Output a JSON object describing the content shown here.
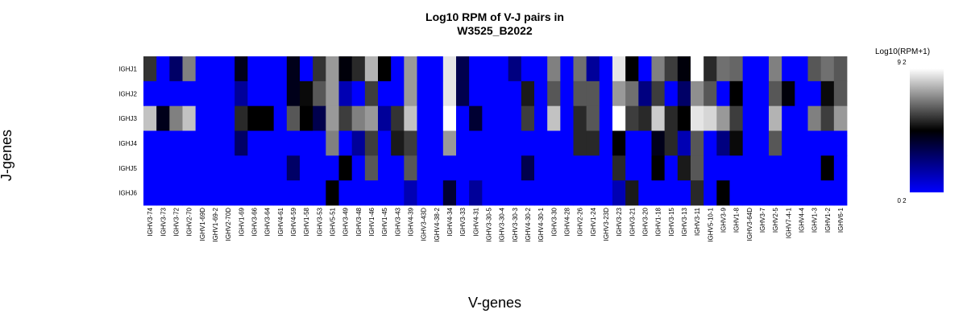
{
  "chart_data": {
    "type": "heatmap",
    "title": "Log10 RPM of V-J pairs in\nW3525_B2022",
    "xlabel": "V-genes",
    "ylabel": "J-genes",
    "legend": {
      "title": "Log10(RPM+1)",
      "max_label": "9 2",
      "min_label": "0 2",
      "placement": "right"
    },
    "color_scale": {
      "low": "#0000ff",
      "mid": "#000000",
      "high": "#ffffff",
      "mid_value": 0.5
    },
    "x": [
      "IGHV3-74",
      "IGHV3-73",
      "IGHV3-72",
      "IGHV2-70",
      "IGHV1-69D",
      "IGHV1-69-2",
      "IGHV2-70D",
      "IGHV1-69",
      "IGHV3-66",
      "IGHV3-64",
      "IGHV4-61",
      "IGHV4-59",
      "IGHV1-58",
      "IGHV3-53",
      "IGHV5-51",
      "IGHV3-49",
      "IGHV3-48",
      "IGHV1-46",
      "IGHV1-45",
      "IGHV3-43",
      "IGHV4-39",
      "IGHV3-43D",
      "IGHV4-38-2",
      "IGHV4-34",
      "IGHV3-33",
      "IGHV4-31",
      "IGHV3-30-5",
      "IGHV3-30-4",
      "IGHV3-30-3",
      "IGHV4-30-2",
      "IGHV4-30-1",
      "IGHV3-30",
      "IGHV4-28",
      "IGHV2-26",
      "IGHV1-24",
      "IGHV3-23D",
      "IGHV3-23",
      "IGHV3-21",
      "IGHV3-20",
      "IGHV1-18",
      "IGHV3-15",
      "IGHV3-13",
      "IGHV3-11",
      "IGHV5-10-1",
      "IGHV3-9",
      "IGHV1-8",
      "IGHV3-64D",
      "IGHV3-7",
      "IGHV2-5",
      "IGHV7-4-1",
      "IGHV4-4",
      "IGHV1-3",
      "IGHV1-2",
      "IGHV6-1"
    ],
    "y": [
      "IGHJ1",
      "IGHJ2",
      "IGHJ3",
      "IGHJ4",
      "IGHJ5",
      "IGHJ6"
    ],
    "values": [
      [
        0.6,
        0,
        0.3,
        0.75,
        0,
        0,
        0,
        0.45,
        0,
        0,
        0,
        0.45,
        0,
        0.6,
        0.8,
        0.48,
        0.58,
        0.85,
        0.5,
        0,
        0.8,
        0,
        0,
        0.95,
        0.35,
        0,
        0,
        0,
        0.25,
        0,
        0,
        0.75,
        0,
        0.72,
        0.2,
        0,
        0.95,
        0.5,
        0,
        0.75,
        0.62,
        0.48,
        1,
        0.58,
        0.72,
        0.7,
        0,
        0,
        0.75,
        0,
        0,
        0.67,
        0.72,
        0.67
      ],
      [
        0,
        0,
        0,
        0,
        0,
        0,
        0,
        0.2,
        0,
        0,
        0,
        0.45,
        0.52,
        0.67,
        0.8,
        0.15,
        0,
        0.62,
        0,
        0,
        0.8,
        0,
        0,
        0.95,
        0.35,
        0,
        0,
        0,
        0,
        0.55,
        0,
        0.67,
        0,
        0.67,
        0.67,
        0,
        0.8,
        0.72,
        0.25,
        0.62,
        0,
        0.3,
        0.78,
        0.67,
        0,
        0.5,
        0,
        0,
        0.67,
        0.48,
        0,
        0,
        0.52,
        0.67
      ],
      [
        0.88,
        0.45,
        0.75,
        0.88,
        0,
        0,
        0,
        0.58,
        0.5,
        0.5,
        0,
        0.67,
        0.5,
        0.35,
        0.8,
        0.62,
        0.75,
        0.8,
        0.2,
        0.6,
        0.88,
        0,
        0,
        1,
        0,
        0.4,
        0,
        0,
        0,
        0.62,
        0,
        0.88,
        0,
        0.58,
        0.67,
        0,
        1,
        0.62,
        0.58,
        0.9,
        0.58,
        0.5,
        0.95,
        0.92,
        0.8,
        0.62,
        0,
        0,
        0.85,
        0,
        0,
        0.75,
        0.62,
        0.8
      ],
      [
        0,
        0,
        0,
        0,
        0,
        0,
        0,
        0.3,
        0,
        0,
        0,
        0,
        0,
        0,
        0.75,
        0,
        0.2,
        0.62,
        0,
        0.55,
        0.62,
        0,
        0,
        0.8,
        0,
        0,
        0,
        0,
        0,
        0,
        0,
        0,
        0,
        0.58,
        0.58,
        0,
        0.5,
        0,
        0,
        0.45,
        0.58,
        0.15,
        0.67,
        0,
        0.25,
        0.52,
        0,
        0,
        0.67,
        0,
        0,
        0,
        0,
        0
      ],
      [
        0,
        0,
        0,
        0,
        0,
        0,
        0,
        0,
        0,
        0,
        0,
        0.3,
        0,
        0,
        0,
        0.5,
        0,
        0.67,
        0,
        0,
        0.67,
        0,
        0,
        0,
        0,
        0,
        0,
        0,
        0,
        0.35,
        0,
        0,
        0,
        0,
        0,
        0,
        0.58,
        0,
        0,
        0.5,
        0,
        0.55,
        0.67,
        0,
        0,
        0,
        0,
        0,
        0,
        0,
        0,
        0,
        0.5,
        0
      ],
      [
        0,
        0,
        0,
        0,
        0,
        0,
        0,
        0,
        0,
        0,
        0,
        0,
        0,
        0,
        0.5,
        0,
        0,
        0,
        0,
        0,
        0.15,
        0,
        0,
        0.4,
        0,
        0.2,
        0,
        0,
        0,
        0,
        0,
        0,
        0,
        0,
        0,
        0,
        0.15,
        0.55,
        0,
        0,
        0,
        0,
        0.58,
        0,
        0.5,
        0,
        0,
        0,
        0,
        0,
        0,
        0,
        0,
        0
      ]
    ]
  }
}
